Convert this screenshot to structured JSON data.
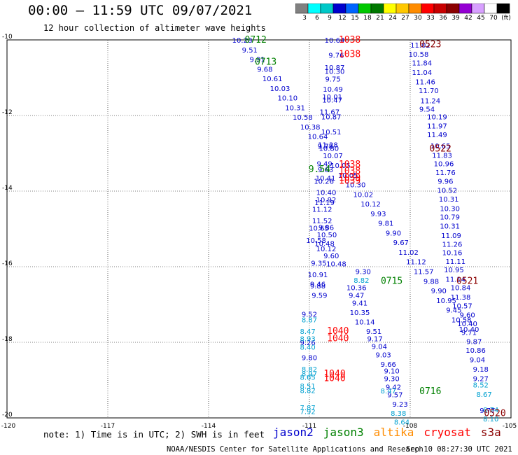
{
  "header": {
    "title": "00:00 — 11:59 UTC 09/07/2021",
    "subtitle": "12 hour collection of altimeter wave heights"
  },
  "colorbar": {
    "labels": [
      "3",
      "6",
      "9",
      "12",
      "15",
      "18",
      "21",
      "24",
      "27",
      "30",
      "33",
      "36",
      "39",
      "42",
      "45",
      "70",
      "(ft)"
    ],
    "colors": [
      "#808080",
      "#00ffff",
      "#00c8c8",
      "#0000cd",
      "#0064ff",
      "#00c800",
      "#007800",
      "#ffff00",
      "#ffc800",
      "#ff8c00",
      "#ff0000",
      "#c80000",
      "#8b0000",
      "#9400d3",
      "#d8a0ff",
      "#ffffff",
      "#000000"
    ]
  },
  "map": {
    "x_ticks": [
      "-120",
      "-117",
      "-114",
      "-111",
      "-108",
      "-105"
    ],
    "y_ticks": [
      "-10",
      "-12",
      "-14",
      "-16",
      "-18",
      "-20"
    ],
    "lon_range": [
      -120,
      -105
    ],
    "lat_range": [
      -20,
      -10
    ]
  },
  "colors": {
    "blue": "#0000cd",
    "cyan": "#00a0d0",
    "green": "#008000",
    "red": "#ff0000",
    "darkred": "#8b0000",
    "orange": "#ff8c00"
  },
  "tracks": [
    {
      "name": "west-blue",
      "color": "blue",
      "start": [
        -113.0,
        -10.0
      ],
      "step": [
        0.225,
        -0.255
      ],
      "values": [
        "10.28",
        "9.51",
        "9.91",
        "9.68",
        "10.61",
        "10.03",
        "10.10",
        "10.31",
        "10.58",
        "10.38",
        "10.64",
        "9.78",
        "10.07",
        "10.05",
        "10.05",
        "10.30",
        "10.02",
        "10.12",
        "9.93",
        "9.81",
        "9.90",
        "9.67",
        "11.02",
        "11.12",
        "11.57",
        "9.88",
        "9.90",
        "10.95",
        "9.45",
        "10.58",
        "10.40"
      ]
    },
    {
      "name": "center-blue-down",
      "color": "blue",
      "start": [
        -110.2,
        -10.0
      ],
      "step": [
        0.0,
        0.0
      ],
      "values": [
        "10.64",
        "9.76",
        "10.87",
        "10.30",
        "9.75",
        "10.49",
        "10.01",
        "10.47",
        "11.67",
        "10.87",
        "10.51",
        "11.28",
        "10.80",
        "9.49",
        "9.63",
        "10.41",
        "10.26",
        "10.40",
        "10.92",
        "11.19",
        "11.12",
        "11.52",
        "10.65",
        "9.86",
        "10.50",
        "10.58",
        "10.48",
        "10.12",
        "9.60",
        "9.35",
        "10.48",
        "10.91",
        "9.46",
        "9.88",
        "9.59"
      ],
      "positions": [
        [
          -110.25,
          -10.0
        ],
        [
          -110.2,
          -10.4
        ],
        [
          -110.25,
          -10.72
        ],
        [
          -110.25,
          -10.82
        ],
        [
          -110.3,
          -11.03
        ],
        [
          -110.3,
          -11.3
        ],
        [
          -110.32,
          -11.5
        ],
        [
          -110.32,
          -11.58
        ],
        [
          -110.4,
          -11.9
        ],
        [
          -110.35,
          -12.03
        ],
        [
          -110.35,
          -12.43
        ],
        [
          -110.45,
          -12.77
        ],
        [
          -110.42,
          -12.86
        ],
        [
          -110.55,
          -13.27
        ],
        [
          -110.52,
          -13.43
        ],
        [
          -110.52,
          -13.65
        ],
        [
          -110.57,
          -13.73
        ],
        [
          -110.5,
          -14.03
        ],
        [
          -110.5,
          -14.22
        ],
        [
          -110.55,
          -14.3
        ],
        [
          -110.62,
          -14.47
        ],
        [
          -110.62,
          -14.78
        ],
        [
          -110.72,
          -14.97
        ],
        [
          -110.5,
          -14.95
        ],
        [
          -110.48,
          -15.15
        ],
        [
          -110.8,
          -15.3
        ],
        [
          -110.55,
          -15.38
        ],
        [
          -110.5,
          -15.52
        ],
        [
          -110.35,
          -15.7
        ],
        [
          -110.72,
          -15.9
        ],
        [
          -110.2,
          -15.92
        ],
        [
          -110.75,
          -16.2
        ],
        [
          -110.75,
          -16.45
        ],
        [
          -110.75,
          -16.5
        ],
        [
          -110.7,
          -16.75
        ]
      ]
    },
    {
      "name": "center-blue-south",
      "color": "blue",
      "start": [
        -110.0,
        -16.1
      ],
      "step": [
        0.0,
        0.0
      ],
      "values": [
        "9.30",
        "10.36",
        "9.47",
        "9.41",
        "10.35",
        "10.14",
        "9.51",
        "9.17",
        "9.04",
        "9.03",
        "9.66",
        "9.10",
        "9.30",
        "9.42",
        "9.57",
        "9.23",
        "9.52",
        "9.26",
        "9.80"
      ],
      "positions": [
        [
          -109.4,
          -16.12
        ],
        [
          -109.6,
          -16.55
        ],
        [
          -109.6,
          -16.75
        ],
        [
          -109.5,
          -16.95
        ],
        [
          -109.5,
          -17.2
        ],
        [
          -109.35,
          -17.45
        ],
        [
          -109.08,
          -17.7
        ],
        [
          -109.05,
          -17.9
        ],
        [
          -108.92,
          -18.1
        ],
        [
          -108.8,
          -18.32
        ],
        [
          -108.65,
          -18.57
        ],
        [
          -108.55,
          -18.75
        ],
        [
          -108.55,
          -18.95
        ],
        [
          -108.5,
          -19.18
        ],
        [
          -108.45,
          -19.38
        ],
        [
          -108.3,
          -19.63
        ],
        [
          -111.0,
          -17.25
        ],
        [
          -111.05,
          -18.0
        ],
        [
          -111.0,
          -18.4
        ]
      ]
    },
    {
      "name": "east-blue",
      "color": "blue",
      "start": [
        -107.8,
        -10.1
      ],
      "step": [
        0.0,
        0.0
      ],
      "values": [
        "11.02",
        "10.58",
        "11.84",
        "11.04",
        "11.46",
        "11.70",
        "11.24",
        "9.54",
        "10.19",
        "11.97",
        "11.49",
        "10.65",
        "11.83",
        "10.96",
        "11.76",
        "9.96",
        "10.52",
        "10.31",
        "10.30",
        "10.79",
        "10.31",
        "11.09",
        "11.26",
        "10.16",
        "11.11",
        "10.95",
        "11.14",
        "10.84",
        "11.38",
        "10.57",
        "9.60",
        "10.40",
        "9.71",
        "9.87",
        "10.86",
        "9.04",
        "9.18",
        "9.27",
        "9.77"
      ],
      "positions": [
        [
          -107.7,
          -10.13
        ],
        [
          -107.75,
          -10.37
        ],
        [
          -107.65,
          -10.6
        ],
        [
          -107.65,
          -10.85
        ],
        [
          -107.55,
          -11.1
        ],
        [
          -107.45,
          -11.33
        ],
        [
          -107.4,
          -11.6
        ],
        [
          -107.5,
          -11.82
        ],
        [
          -107.2,
          -12.03
        ],
        [
          -107.2,
          -12.27
        ],
        [
          -107.2,
          -12.5
        ],
        [
          -107.1,
          -12.8
        ],
        [
          -107.05,
          -13.05
        ],
        [
          -107.0,
          -13.27
        ],
        [
          -106.95,
          -13.5
        ],
        [
          -106.95,
          -13.73
        ],
        [
          -106.9,
          -13.97
        ],
        [
          -106.85,
          -14.2
        ],
        [
          -106.82,
          -14.45
        ],
        [
          -106.82,
          -14.68
        ],
        [
          -106.82,
          -14.92
        ],
        [
          -106.78,
          -15.17
        ],
        [
          -106.75,
          -15.4
        ],
        [
          -106.75,
          -15.62
        ],
        [
          -106.65,
          -15.85
        ],
        [
          -106.7,
          -16.07
        ],
        [
          -106.65,
          -16.32
        ],
        [
          -106.5,
          -16.55
        ],
        [
          -106.5,
          -16.8
        ],
        [
          -106.45,
          -17.03
        ],
        [
          -106.3,
          -17.27
        ],
        [
          -106.3,
          -17.5
        ],
        [
          -106.25,
          -17.73
        ],
        [
          -106.1,
          -17.97
        ],
        [
          -106.05,
          -18.2
        ],
        [
          -106.0,
          -18.45
        ],
        [
          -105.9,
          -18.7
        ],
        [
          -105.9,
          -18.95
        ],
        [
          -105.7,
          -19.8
        ]
      ]
    },
    {
      "name": "cyan-points",
      "color": "cyan",
      "start": [
        0,
        0
      ],
      "step": [
        0,
        0
      ],
      "values": [
        "8.82",
        "8.87",
        "8.47",
        "8.93",
        "8.40",
        "8.82",
        "8.97",
        "8.65",
        "8.51",
        "8.82",
        "7.87",
        "7.92",
        "8.47",
        "8.38",
        "8.64",
        "8.52",
        "8.67",
        "8.74",
        "8.10"
      ],
      "positions": [
        [
          -109.45,
          -16.35
        ],
        [
          -111.0,
          -17.4
        ],
        [
          -111.05,
          -17.7
        ],
        [
          -111.05,
          -17.9
        ],
        [
          -111.05,
          -18.12
        ],
        [
          -111.0,
          -18.7
        ],
        [
          -111.0,
          -18.82
        ],
        [
          -111.05,
          -18.92
        ],
        [
          -111.05,
          -19.15
        ],
        [
          -111.05,
          -19.27
        ],
        [
          -111.05,
          -19.72
        ],
        [
          -111.05,
          -19.82
        ],
        [
          -108.65,
          -19.28
        ],
        [
          -108.35,
          -19.87
        ],
        [
          -108.25,
          -20.1
        ],
        [
          -105.9,
          -19.12
        ],
        [
          -105.8,
          -19.37
        ],
        [
          -105.6,
          -19.78
        ],
        [
          -105.6,
          -20.02
        ]
      ]
    },
    {
      "name": "green-labels",
      "color": "green",
      "start": [
        0,
        0
      ],
      "step": [
        0,
        0
      ],
      "values": [
        "0712",
        "0713",
        "9.54",
        "0715",
        "0716"
      ],
      "positions": [
        [
          -112.6,
          -10.0
        ],
        [
          -112.3,
          -10.58
        ],
        [
          -110.7,
          -13.43
        ],
        [
          -108.55,
          -16.38
        ],
        [
          -107.4,
          -19.3
        ]
      ]
    },
    {
      "name": "red-labels",
      "color": "red",
      "start": [
        0,
        0
      ],
      "step": [
        0,
        0
      ],
      "values": [
        "1038",
        "1038",
        "1038",
        "1038",
        "1039",
        "1039",
        "1040",
        "1040",
        "1040",
        "1040"
      ],
      "positions": [
        [
          -109.8,
          -10.0
        ],
        [
          -109.8,
          -10.38
        ],
        [
          -109.8,
          -13.3
        ],
        [
          -109.8,
          -13.47
        ],
        [
          -109.8,
          -13.65
        ],
        [
          -109.8,
          -13.73
        ],
        [
          -110.15,
          -17.7
        ],
        [
          -110.15,
          -17.9
        ],
        [
          -110.25,
          -18.83
        ],
        [
          -110.25,
          -18.95
        ]
      ]
    },
    {
      "name": "darkred-labels",
      "color": "darkred",
      "start": [
        0,
        0
      ],
      "step": [
        0,
        0
      ],
      "values": [
        "0523",
        "0522",
        "0521",
        "0520"
      ],
      "positions": [
        [
          -107.4,
          -10.12
        ],
        [
          -107.1,
          -12.88
        ],
        [
          -106.3,
          -16.38
        ],
        [
          -105.3,
          -19.88
        ]
      ]
    }
  ],
  "footer": {
    "note": "note: 1) Time is in UTC; 2) SWH is in feet",
    "sats": [
      {
        "name": "jason2",
        "color": "#0000cd"
      },
      {
        "name": "jason3",
        "color": "#008000"
      },
      {
        "name": "altika",
        "color": "#ff8c00"
      },
      {
        "name": "cryosat",
        "color": "#ff0000"
      },
      {
        "name": "s3a",
        "color": "#8b0000"
      }
    ],
    "credit": "NOAA/NESDIS Center for Satellite Applications and Research",
    "timestamp": "Sep 10 08:27:30 UTC 2021"
  }
}
